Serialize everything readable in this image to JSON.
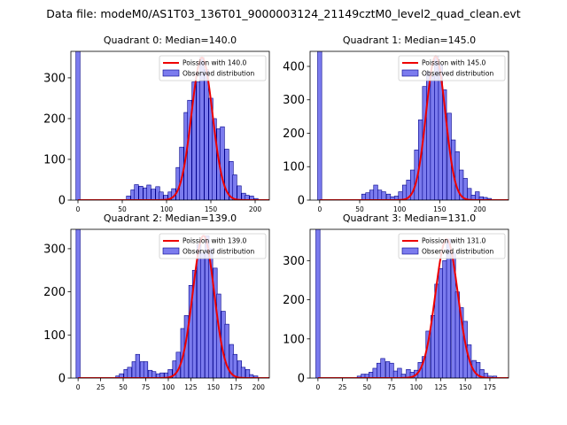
{
  "title": "Data file: modeM0/AS1T03_136T01_9000003124_21149cztM0_level2_quad_clean.evt",
  "colors": {
    "bar_fill": "#7b7bee",
    "bar_edge": "#00008b",
    "curve": "#ee0000"
  },
  "chart_data": [
    {
      "type": "bar",
      "title": "Quadrant 0: Median=140.0",
      "xlim": [
        -8,
        216
      ],
      "ylim": [
        0,
        365
      ],
      "xticks": [
        0,
        50,
        100,
        150,
        200
      ],
      "yticks": [
        0,
        100,
        200,
        300
      ],
      "median": 140,
      "bin_width": 4.6,
      "legend": {
        "curve_label": "Poission with 140.0",
        "bars_label": "Observed distribution",
        "position": "top-right"
      },
      "bins": [
        [
          0,
          400
        ],
        [
          57,
          10
        ],
        [
          62,
          25
        ],
        [
          66,
          38
        ],
        [
          71,
          34
        ],
        [
          76,
          30
        ],
        [
          80,
          37
        ],
        [
          85,
          27
        ],
        [
          90,
          33
        ],
        [
          94,
          20
        ],
        [
          99,
          12
        ],
        [
          104,
          20
        ],
        [
          108,
          28
        ],
        [
          113,
          80
        ],
        [
          117,
          130
        ],
        [
          122,
          215
        ],
        [
          126,
          245
        ],
        [
          131,
          290
        ],
        [
          136,
          290
        ],
        [
          140,
          350
        ],
        [
          145,
          320
        ],
        [
          150,
          250
        ],
        [
          154,
          200
        ],
        [
          159,
          175
        ],
        [
          163,
          180
        ],
        [
          168,
          125
        ],
        [
          173,
          95
        ],
        [
          177,
          62
        ],
        [
          182,
          35
        ],
        [
          187,
          17
        ],
        [
          191,
          12
        ],
        [
          196,
          10
        ],
        [
          201,
          4
        ]
      ]
    },
    {
      "type": "bar",
      "title": "Quadrant 1: Median=145.0",
      "xlim": [
        -12,
        236
      ],
      "ylim": [
        0,
        445
      ],
      "xticks": [
        0,
        50,
        100,
        150,
        200
      ],
      "yticks": [
        0,
        100,
        200,
        300,
        400
      ],
      "median": 145,
      "bin_width": 5.1,
      "legend": {
        "curve_label": "Poission with 145.0",
        "bars_label": "Observed distribution",
        "position": "top-right"
      },
      "bins": [
        [
          0,
          490
        ],
        [
          55,
          18
        ],
        [
          60,
          22
        ],
        [
          65,
          30
        ],
        [
          70,
          45
        ],
        [
          75,
          30
        ],
        [
          80,
          25
        ],
        [
          86,
          18
        ],
        [
          91,
          10
        ],
        [
          96,
          12
        ],
        [
          101,
          25
        ],
        [
          106,
          45
        ],
        [
          111,
          60
        ],
        [
          116,
          90
        ],
        [
          121,
          150
        ],
        [
          126,
          240
        ],
        [
          131,
          340
        ],
        [
          136,
          385
        ],
        [
          141,
          370
        ],
        [
          146,
          430
        ],
        [
          151,
          405
        ],
        [
          156,
          330
        ],
        [
          162,
          260
        ],
        [
          167,
          180
        ],
        [
          172,
          145
        ],
        [
          177,
          90
        ],
        [
          182,
          65
        ],
        [
          187,
          35
        ],
        [
          192,
          15
        ],
        [
          197,
          25
        ],
        [
          202,
          10
        ],
        [
          207,
          8
        ],
        [
          212,
          5
        ]
      ]
    },
    {
      "type": "bar",
      "title": "Quadrant 2: Median=139.0",
      "xlim": [
        -8,
        212
      ],
      "ylim": [
        0,
        345
      ],
      "xticks": [
        0,
        25,
        50,
        75,
        100,
        125,
        150,
        175,
        200
      ],
      "yticks": [
        0,
        100,
        200,
        300
      ],
      "median": 139,
      "bin_width": 4.5,
      "legend": {
        "curve_label": "Poission with 139.0",
        "bars_label": "Observed distribution",
        "position": "top-right"
      },
      "bins": [
        [
          0,
          380
        ],
        [
          44,
          5
        ],
        [
          48,
          10
        ],
        [
          53,
          20
        ],
        [
          57,
          25
        ],
        [
          62,
          38
        ],
        [
          66,
          55
        ],
        [
          71,
          38
        ],
        [
          75,
          38
        ],
        [
          80,
          18
        ],
        [
          84,
          15
        ],
        [
          89,
          10
        ],
        [
          93,
          12
        ],
        [
          98,
          12
        ],
        [
          102,
          20
        ],
        [
          107,
          40
        ],
        [
          111,
          60
        ],
        [
          116,
          115
        ],
        [
          120,
          145
        ],
        [
          125,
          215
        ],
        [
          129,
          250
        ],
        [
          134,
          310
        ],
        [
          138,
          290
        ],
        [
          143,
          330
        ],
        [
          147,
          300
        ],
        [
          152,
          255
        ],
        [
          156,
          195
        ],
        [
          161,
          155
        ],
        [
          165,
          125
        ],
        [
          170,
          78
        ],
        [
          174,
          55
        ],
        [
          179,
          40
        ],
        [
          183,
          25
        ],
        [
          188,
          20
        ],
        [
          192,
          8
        ],
        [
          197,
          5
        ]
      ]
    },
    {
      "type": "bar",
      "title": "Quadrant 3: Median=131.0",
      "xlim": [
        -8,
        194
      ],
      "ylim": [
        0,
        380
      ],
      "xticks": [
        0,
        25,
        50,
        75,
        100,
        125,
        150,
        175
      ],
      "yticks": [
        0,
        100,
        200,
        300
      ],
      "median": 131,
      "bin_width": 4.2,
      "legend": {
        "curve_label": "Poission with 131.0",
        "bars_label": "Observed distribution",
        "position": "top-right"
      },
      "bins": [
        [
          0,
          440
        ],
        [
          42,
          5
        ],
        [
          46,
          10
        ],
        [
          50,
          10
        ],
        [
          54,
          15
        ],
        [
          58,
          25
        ],
        [
          62,
          38
        ],
        [
          66,
          50
        ],
        [
          71,
          42
        ],
        [
          75,
          38
        ],
        [
          79,
          18
        ],
        [
          83,
          25
        ],
        [
          87,
          10
        ],
        [
          92,
          22
        ],
        [
          96,
          15
        ],
        [
          100,
          20
        ],
        [
          104,
          40
        ],
        [
          108,
          55
        ],
        [
          112,
          120
        ],
        [
          117,
          160
        ],
        [
          121,
          240
        ],
        [
          125,
          280
        ],
        [
          129,
          300
        ],
        [
          133,
          355
        ],
        [
          138,
          320
        ],
        [
          142,
          220
        ],
        [
          146,
          180
        ],
        [
          150,
          145
        ],
        [
          154,
          85
        ],
        [
          159,
          45
        ],
        [
          163,
          40
        ],
        [
          167,
          22
        ],
        [
          171,
          12
        ],
        [
          175,
          5
        ],
        [
          180,
          5
        ]
      ]
    }
  ]
}
